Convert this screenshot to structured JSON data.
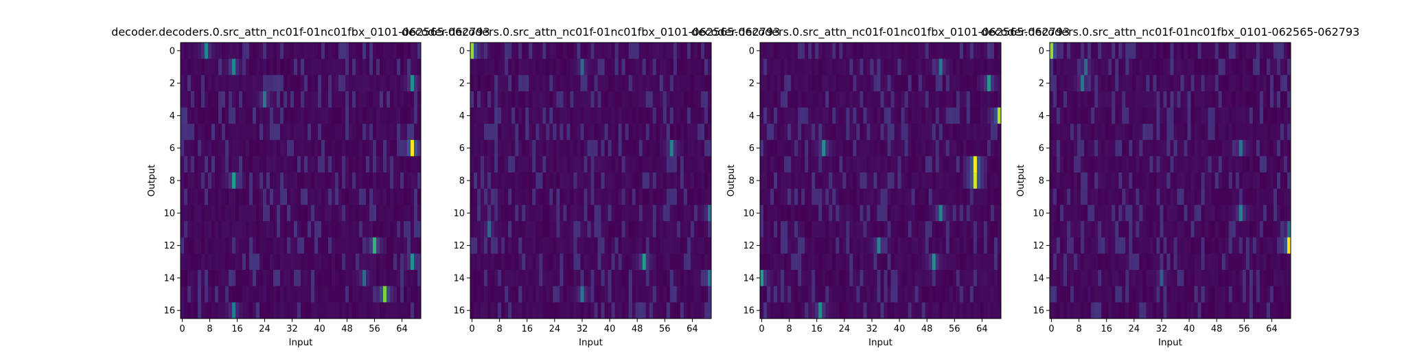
{
  "chart_data": [
    {
      "type": "heatmap",
      "title": "decoder.decoders.0.src_attn_nc01f-01nc01fbx_0101-062565-062793",
      "xlabel": "Input",
      "ylabel": "Output",
      "x_ticks": [
        "0",
        "8",
        "16",
        "24",
        "32",
        "40",
        "48",
        "56",
        "64"
      ],
      "y_ticks": [
        "0",
        "2",
        "4",
        "6",
        "8",
        "10",
        "12",
        "14",
        "16"
      ],
      "n_input": 70,
      "n_output": 17,
      "colormap": "viridis",
      "hotspots": [
        {
          "output": 6,
          "input": 67,
          "value": 1.0
        },
        {
          "output": 15,
          "input": 59,
          "value": 0.8
        },
        {
          "output": 12,
          "input": 56,
          "value": 0.65
        },
        {
          "output": 8,
          "input": 15,
          "value": 0.55
        },
        {
          "output": 0,
          "input": 7,
          "value": 0.45
        },
        {
          "output": 2,
          "input": 67,
          "value": 0.5
        },
        {
          "output": 13,
          "input": 67,
          "value": 0.5
        },
        {
          "output": 1,
          "input": 15,
          "value": 0.45
        },
        {
          "output": 14,
          "input": 53,
          "value": 0.35
        },
        {
          "output": 3,
          "input": 24,
          "value": 0.4
        },
        {
          "output": 16,
          "input": 15,
          "value": 0.4
        }
      ]
    },
    {
      "type": "heatmap",
      "title": "decoder.decoders.0.src_attn_nc01f-01nc01fbx_0101-062565-062793",
      "xlabel": "Input",
      "ylabel": "",
      "x_ticks": [
        "0",
        "8",
        "16",
        "24",
        "32",
        "40",
        "48",
        "56",
        "64"
      ],
      "y_ticks": [
        "0",
        "2",
        "4",
        "6",
        "8",
        "10",
        "12",
        "14",
        "16"
      ],
      "n_input": 70,
      "n_output": 17,
      "colormap": "viridis",
      "hotspots": [
        {
          "output": 0,
          "input": 0,
          "value": 0.85
        },
        {
          "output": 13,
          "input": 50,
          "value": 0.55
        },
        {
          "output": 6,
          "input": 58,
          "value": 0.45
        },
        {
          "output": 15,
          "input": 32,
          "value": 0.4
        },
        {
          "output": 1,
          "input": 32,
          "value": 0.35
        },
        {
          "output": 11,
          "input": 5,
          "value": 0.35
        },
        {
          "output": 10,
          "input": 69,
          "value": 0.4
        },
        {
          "output": 14,
          "input": 69,
          "value": 0.4
        }
      ]
    },
    {
      "type": "heatmap",
      "title": "decoder.decoders.0.src_attn_nc01f-01nc01fbx_0101-062565-062793",
      "xlabel": "Input",
      "ylabel": "Output",
      "x_ticks": [
        "0",
        "8",
        "16",
        "24",
        "32",
        "40",
        "48",
        "56",
        "64"
      ],
      "y_ticks": [
        "0",
        "2",
        "4",
        "6",
        "8",
        "10",
        "12",
        "14",
        "16"
      ],
      "n_input": 70,
      "n_output": 17,
      "colormap": "viridis",
      "hotspots": [
        {
          "output": 7,
          "input": 62,
          "value": 1.0
        },
        {
          "output": 8,
          "input": 62,
          "value": 0.95
        },
        {
          "output": 4,
          "input": 69,
          "value": 0.9
        },
        {
          "output": 2,
          "input": 66,
          "value": 0.55
        },
        {
          "output": 13,
          "input": 50,
          "value": 0.5
        },
        {
          "output": 12,
          "input": 34,
          "value": 0.45
        },
        {
          "output": 14,
          "input": 0,
          "value": 0.55
        },
        {
          "output": 16,
          "input": 17,
          "value": 0.5
        },
        {
          "output": 6,
          "input": 18,
          "value": 0.5
        },
        {
          "output": 10,
          "input": 52,
          "value": 0.45
        },
        {
          "output": 1,
          "input": 52,
          "value": 0.4
        }
      ]
    },
    {
      "type": "heatmap",
      "title": "decoder.decoders.0.src_attn_nc01f-01nc01fbx_0101-062565-062793",
      "xlabel": "Input",
      "ylabel": "Output",
      "x_ticks": [
        "0",
        "8",
        "16",
        "24",
        "32",
        "40",
        "48",
        "56",
        "64"
      ],
      "y_ticks": [
        "0",
        "2",
        "4",
        "6",
        "8",
        "10",
        "12",
        "14",
        "16"
      ],
      "n_input": 70,
      "n_output": 17,
      "colormap": "viridis",
      "hotspots": [
        {
          "output": 12,
          "input": 69,
          "value": 1.0
        },
        {
          "output": 0,
          "input": 0,
          "value": 0.85
        },
        {
          "output": 10,
          "input": 55,
          "value": 0.45
        },
        {
          "output": 6,
          "input": 55,
          "value": 0.4
        },
        {
          "output": 2,
          "input": 9,
          "value": 0.4
        },
        {
          "output": 1,
          "input": 10,
          "value": 0.35
        },
        {
          "output": 11,
          "input": 69,
          "value": 0.35
        },
        {
          "output": 14,
          "input": 32,
          "value": 0.3
        }
      ]
    }
  ]
}
